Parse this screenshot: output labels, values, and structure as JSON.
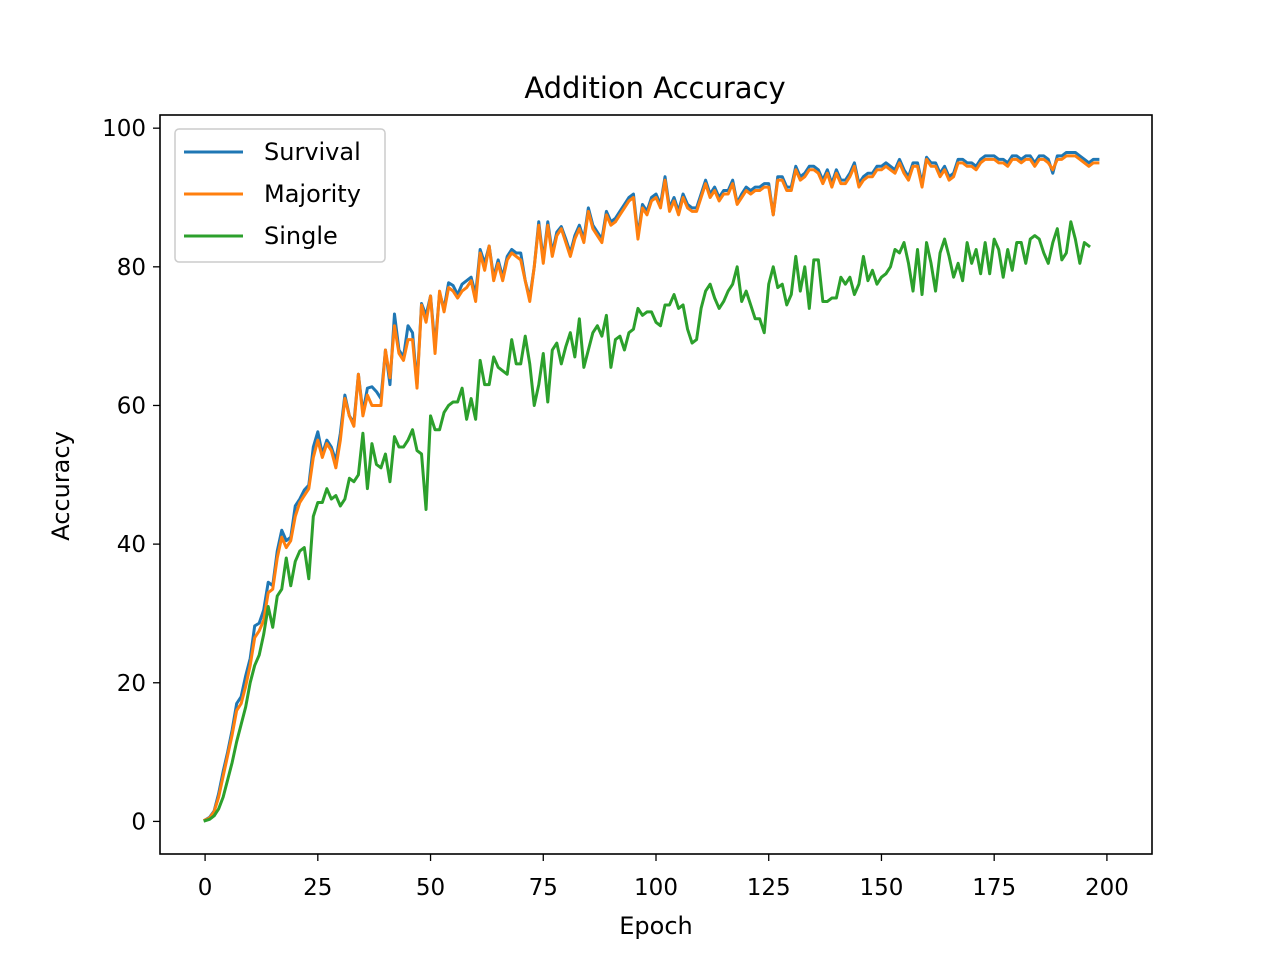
{
  "chart_data": {
    "type": "line",
    "title": "Addition Accuracy",
    "xlabel": "Epoch",
    "ylabel": "Accuracy",
    "xlim": [
      -10,
      210
    ],
    "ylim": [
      -4.7,
      101.9
    ],
    "xticks": [
      0,
      25,
      50,
      75,
      100,
      125,
      150,
      175,
      200
    ],
    "yticks": [
      0,
      20,
      40,
      60,
      80,
      100
    ],
    "grid": false,
    "legend_position": "upper-left",
    "x_start": 0,
    "x_step": 1,
    "series": [
      {
        "name": "Survival",
        "color": "#1f77b4",
        "values": [
          0.2,
          0.6,
          1.5,
          4.0,
          7.2,
          10.0,
          13.2,
          17.0,
          18.0,
          21.0,
          23.5,
          28.2,
          28.6,
          30.5,
          34.5,
          34.0,
          39.0,
          42.0,
          40.5,
          41.0,
          45.5,
          46.5,
          47.8,
          48.5,
          54.0,
          56.2,
          53.0,
          55.0,
          54.0,
          52.0,
          56.0,
          61.5,
          58.5,
          57.5,
          64.5,
          59.0,
          62.5,
          62.7,
          62.0,
          61.0,
          68.0,
          63.0,
          73.2,
          68.0,
          67.0,
          71.5,
          70.5,
          63.0,
          74.7,
          73.0,
          75.8,
          68.5,
          76.2,
          74.0,
          77.7,
          77.3,
          76.0,
          77.5,
          78.0,
          78.5,
          76.0,
          82.5,
          80.5,
          83.0,
          78.5,
          81.0,
          78.5,
          81.5,
          82.5,
          82.0,
          82.0,
          78.0,
          75.5,
          80.0,
          86.5,
          81.0,
          86.5,
          82.0,
          85.0,
          85.8,
          84.0,
          82.0,
          84.5,
          86.0,
          84.0,
          88.5,
          86.0,
          85.0,
          84.0,
          88.0,
          86.5,
          87.0,
          88.0,
          89.0,
          90.0,
          90.5,
          84.5,
          89.0,
          88.0,
          90.0,
          90.5,
          89.0,
          93.0,
          88.5,
          90.0,
          88.0,
          90.5,
          89.0,
          88.5,
          88.5,
          90.5,
          92.5,
          90.5,
          91.5,
          90.0,
          91.0,
          91.0,
          92.5,
          89.2,
          90.5,
          91.5,
          91.0,
          91.5,
          91.5,
          92.0,
          92.0,
          87.5,
          93.0,
          93.0,
          91.5,
          91.5,
          94.5,
          93.0,
          93.5,
          94.5,
          94.5,
          94.0,
          92.5,
          94.0,
          92.0,
          94.0,
          92.5,
          92.5,
          93.5,
          95.0,
          92.0,
          93.0,
          93.5,
          93.5,
          94.5,
          94.5,
          95.0,
          94.5,
          94.0,
          95.5,
          94.0,
          93.0,
          95.0,
          95.0,
          92.0,
          95.8,
          95.0,
          95.0,
          93.5,
          94.5,
          93.0,
          93.5,
          95.5,
          95.5,
          95.0,
          95.0,
          94.5,
          95.5,
          96.0,
          96.0,
          96.0,
          95.5,
          95.5,
          95.0,
          96.0,
          96.0,
          95.5,
          96.0,
          96.0,
          95.0,
          96.0,
          96.0,
          95.5,
          93.5,
          96.0,
          96.0,
          96.5,
          96.5,
          96.5,
          96.0,
          95.5,
          95.0,
          95.5,
          95.5
        ]
      },
      {
        "name": "Majority",
        "color": "#ff7f0e",
        "values": [
          0.2,
          0.5,
          1.4,
          3.5,
          6.5,
          9.5,
          12.5,
          16.0,
          17.0,
          19.5,
          22.5,
          26.5,
          27.5,
          29.0,
          33.0,
          33.5,
          38.0,
          41.0,
          39.5,
          40.5,
          44.0,
          46.0,
          47.0,
          48.0,
          52.5,
          55.0,
          52.5,
          54.5,
          53.5,
          51.0,
          55.0,
          61.0,
          58.5,
          57.0,
          64.5,
          58.5,
          61.5,
          60.0,
          60.0,
          60.0,
          68.0,
          64.0,
          71.5,
          67.5,
          66.5,
          69.5,
          69.5,
          62.5,
          74.5,
          72.0,
          75.8,
          67.5,
          76.5,
          73.5,
          77.0,
          76.5,
          75.5,
          76.5,
          77.0,
          78.0,
          75.0,
          82.0,
          79.5,
          83.0,
          78.0,
          80.5,
          78.0,
          81.0,
          82.0,
          81.5,
          81.0,
          78.0,
          75.0,
          80.0,
          86.0,
          80.5,
          86.0,
          81.5,
          84.5,
          85.5,
          83.5,
          81.5,
          84.0,
          85.5,
          83.5,
          88.0,
          85.5,
          84.5,
          83.5,
          87.5,
          86.0,
          86.5,
          87.5,
          88.5,
          89.5,
          90.0,
          84.0,
          88.5,
          87.5,
          89.5,
          90.0,
          88.5,
          92.5,
          88.0,
          89.5,
          87.5,
          90.0,
          88.5,
          88.0,
          88.0,
          90.0,
          92.0,
          90.0,
          91.0,
          89.5,
          90.5,
          90.5,
          92.0,
          89.0,
          90.0,
          91.0,
          90.5,
          91.0,
          91.0,
          91.5,
          91.5,
          87.5,
          92.5,
          92.5,
          91.0,
          91.0,
          94.0,
          92.5,
          93.0,
          94.0,
          94.0,
          93.5,
          92.0,
          93.5,
          91.5,
          93.5,
          92.0,
          92.0,
          93.0,
          94.5,
          91.5,
          92.5,
          93.0,
          93.0,
          94.0,
          94.0,
          94.5,
          94.0,
          93.5,
          95.0,
          93.5,
          92.5,
          94.5,
          94.5,
          91.5,
          95.5,
          94.5,
          94.5,
          93.0,
          94.0,
          92.5,
          93.0,
          95.0,
          95.0,
          94.5,
          94.5,
          94.0,
          95.0,
          95.5,
          95.5,
          95.5,
          95.0,
          95.0,
          94.5,
          95.5,
          95.5,
          95.0,
          95.5,
          95.5,
          94.5,
          95.5,
          95.5,
          95.0,
          94.0,
          95.5,
          95.5,
          96.0,
          96.0,
          96.0,
          95.5,
          95.0,
          94.5,
          95.0,
          95.0
        ]
      },
      {
        "name": "Single",
        "color": "#2ca02c",
        "values": [
          0.1,
          0.3,
          0.8,
          1.8,
          3.5,
          6.0,
          8.5,
          11.5,
          14.0,
          16.5,
          20.0,
          22.5,
          24.0,
          27.0,
          31.0,
          28.0,
          32.5,
          33.5,
          38.0,
          34.0,
          37.5,
          39.0,
          39.5,
          35.0,
          44.0,
          46.0,
          46.0,
          48.0,
          46.5,
          47.0,
          45.5,
          46.5,
          49.5,
          49.0,
          50.0,
          56.0,
          48.0,
          54.5,
          51.5,
          51.0,
          53.0,
          49.0,
          55.5,
          54.0,
          54.0,
          55.0,
          56.5,
          53.5,
          53.0,
          45.0,
          58.5,
          56.5,
          56.5,
          59.0,
          60.0,
          60.5,
          60.5,
          62.5,
          58.0,
          61.0,
          58.0,
          66.5,
          63.0,
          63.0,
          67.0,
          65.5,
          65.0,
          64.5,
          69.5,
          66.0,
          66.0,
          70.0,
          66.0,
          60.0,
          63.0,
          67.5,
          60.5,
          68.0,
          69.0,
          66.0,
          68.5,
          70.5,
          67.0,
          72.5,
          65.5,
          68.0,
          70.5,
          71.5,
          70.0,
          73.0,
          65.5,
          69.5,
          70.0,
          68.0,
          70.5,
          71.0,
          74.0,
          73.0,
          73.5,
          73.5,
          72.0,
          71.5,
          74.5,
          74.5,
          76.0,
          74.0,
          74.5,
          71.0,
          69.0,
          69.5,
          74.0,
          76.5,
          77.5,
          75.5,
          74.0,
          75.0,
          76.5,
          77.5,
          80.0,
          75.0,
          76.5,
          74.5,
          72.5,
          72.5,
          70.5,
          77.5,
          80.0,
          77.0,
          77.5,
          74.5,
          76.0,
          81.5,
          76.5,
          80.0,
          74.0,
          81.0,
          81.0,
          75.0,
          75.0,
          75.5,
          75.5,
          78.5,
          77.5,
          78.5,
          76.0,
          77.5,
          81.5,
          78.0,
          79.5,
          77.5,
          78.5,
          79.0,
          80.0,
          82.5,
          82.0,
          83.5,
          80.5,
          76.5,
          82.5,
          76.0,
          83.5,
          80.5,
          76.5,
          82.0,
          84.0,
          81.5,
          78.5,
          80.5,
          78.0,
          83.5,
          80.5,
          82.5,
          79.0,
          83.5,
          79.0,
          84.0,
          82.5,
          78.5,
          82.5,
          79.5,
          83.5,
          83.5,
          80.5,
          84.0,
          84.5,
          84.0,
          82.0,
          80.5,
          83.5,
          85.5,
          81.0,
          82.0,
          86.5,
          84.0,
          80.5,
          83.5,
          83.0
        ]
      }
    ]
  }
}
